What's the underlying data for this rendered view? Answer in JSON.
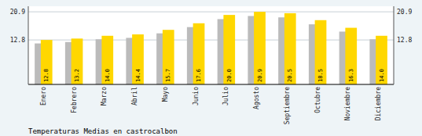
{
  "chart_data": {
    "type": "bar",
    "title": "Temperaturas Medias en castrocalbon",
    "categories": [
      "Enero",
      "Febrero",
      "Marzo",
      "Abril",
      "Mayo",
      "Junio",
      "Julio",
      "Agosto",
      "Septiembre",
      "Octubre",
      "Noviembre",
      "Diciembre"
    ],
    "series": [
      {
        "color": "#BBBBBB",
        "values": [
          11.8,
          12.2,
          13.0,
          13.4,
          14.7,
          16.5,
          18.8,
          19.7,
          19.3,
          17.3,
          15.2,
          13.0
        ]
      },
      {
        "color": "#FFD700",
        "values": [
          12.8,
          13.2,
          14.0,
          14.4,
          15.7,
          17.6,
          20.0,
          20.9,
          20.5,
          18.5,
          16.3,
          14.0
        ],
        "data_labels": true,
        "value_labels": [
          "12.8",
          "13.2",
          "14.0",
          "14.4",
          "15.7",
          "17.6",
          "20.0",
          "20.9",
          "20.5",
          "18.5",
          "16.3",
          "14.0"
        ]
      }
    ],
    "ylim": [
      0,
      22.5
    ],
    "yticks": [
      12.8,
      20.9
    ],
    "y2lim": [
      0,
      22.5
    ],
    "y2ticks": [
      12.8,
      20.9
    ],
    "grid": true
  }
}
